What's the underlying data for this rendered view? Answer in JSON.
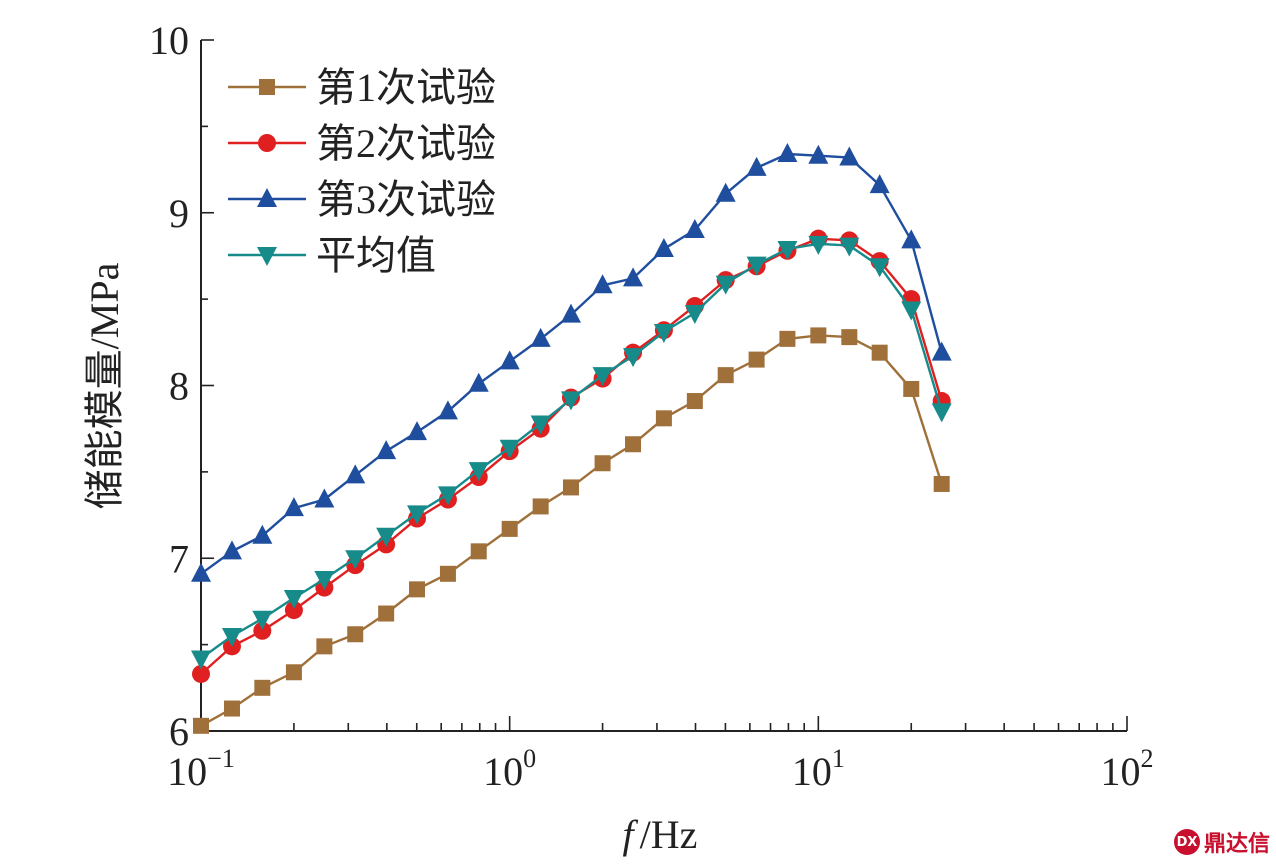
{
  "chart_data": {
    "type": "line",
    "xscale": "log",
    "xlim": [
      0.1,
      100
    ],
    "ylim": [
      6,
      10
    ],
    "yticks": [
      6,
      7,
      8,
      9,
      10
    ],
    "xticks": [
      {
        "value": 0.1,
        "base": "10",
        "exp": "−1"
      },
      {
        "value": 1,
        "base": "10",
        "exp": "0"
      },
      {
        "value": 10,
        "base": "10",
        "exp": "1"
      },
      {
        "value": 100,
        "base": "10",
        "exp": "2"
      }
    ],
    "xlabel_italic": "f",
    "xlabel_unit": "/Hz",
    "ylabel": "储能模量/MPa",
    "legend_position": "top-left",
    "x": [
      0.1,
      0.126,
      0.158,
      0.2,
      0.251,
      0.316,
      0.398,
      0.501,
      0.631,
      0.794,
      1.0,
      1.26,
      1.58,
      2.0,
      2.51,
      3.16,
      3.98,
      5.01,
      6.31,
      7.94,
      10.0,
      12.6,
      15.8,
      20.0,
      25.1
    ],
    "series": [
      {
        "name": "第1次试验",
        "marker": "square",
        "color": "#a0703a",
        "values": [
          6.03,
          6.13,
          6.25,
          6.34,
          6.49,
          6.56,
          6.68,
          6.82,
          6.91,
          7.04,
          7.17,
          7.3,
          7.41,
          7.55,
          7.66,
          7.81,
          7.91,
          8.06,
          8.15,
          8.27,
          8.29,
          8.28,
          8.19,
          7.98,
          7.43
        ]
      },
      {
        "name": "第2次试验",
        "marker": "circle",
        "color": "#e02020",
        "values": [
          6.33,
          6.49,
          6.58,
          6.7,
          6.83,
          6.96,
          7.08,
          7.23,
          7.34,
          7.47,
          7.62,
          7.75,
          7.93,
          8.04,
          8.19,
          8.32,
          8.46,
          8.61,
          8.69,
          8.78,
          8.85,
          8.84,
          8.72,
          8.5,
          7.91
        ]
      },
      {
        "name": "第3次试验",
        "marker": "triangle-up",
        "color": "#1f4e9e",
        "values": [
          6.91,
          7.04,
          7.13,
          7.29,
          7.34,
          7.48,
          7.62,
          7.73,
          7.85,
          8.01,
          8.14,
          8.27,
          8.41,
          8.58,
          8.62,
          8.79,
          8.9,
          9.11,
          9.26,
          9.34,
          9.33,
          9.32,
          9.16,
          8.84,
          8.19
        ]
      },
      {
        "name": "平均值",
        "marker": "triangle-down",
        "color": "#178a8a",
        "values": [
          6.42,
          6.55,
          6.65,
          6.77,
          6.88,
          7.0,
          7.13,
          7.26,
          7.37,
          7.51,
          7.64,
          7.78,
          7.92,
          8.06,
          8.17,
          8.31,
          8.42,
          8.59,
          8.7,
          8.79,
          8.82,
          8.81,
          8.69,
          8.44,
          7.85
        ]
      }
    ]
  },
  "watermark": {
    "logo": "DX",
    "text": "鼎达信"
  }
}
